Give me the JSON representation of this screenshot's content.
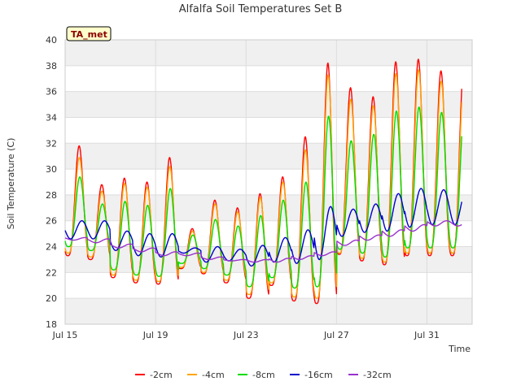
{
  "chart_data": {
    "type": "line",
    "title": "Alfalfa Soil Temperatures Set B",
    "xlabel": "Time",
    "ylabel": "Soil Temperature (C)",
    "badge": "TA_met",
    "ylim": [
      18,
      40
    ],
    "yticks": [
      18,
      20,
      22,
      24,
      26,
      28,
      30,
      32,
      34,
      36,
      38,
      40
    ],
    "xlim": [
      "2017-07-15",
      "2017-08-02"
    ],
    "xticks": [
      {
        "date": "2017-07-15",
        "label": "Jul 15"
      },
      {
        "date": "2017-07-19",
        "label": "Jul 19"
      },
      {
        "date": "2017-07-23",
        "label": "Jul 23"
      },
      {
        "date": "2017-07-27",
        "label": "Jul 27"
      },
      {
        "date": "2017-07-31",
        "label": "Jul 31"
      }
    ],
    "grid": true,
    "legend_position": "bottom",
    "daily_extremes_note": "values are approximate daily max/min read from the plot",
    "series": [
      {
        "name": "-2cm",
        "color": "#ff0000",
        "min": [
          23.3,
          23.0,
          21.6,
          21.2,
          21.1,
          22.3,
          21.9,
          21.2,
          20.0,
          21.0,
          19.8,
          19.6,
          23.4,
          22.9,
          22.6,
          23.3,
          23.3
        ],
        "max": [
          31.8,
          28.8,
          29.3,
          29.0,
          30.9,
          25.4,
          27.6,
          27.0,
          28.1,
          29.4,
          32.5,
          38.2,
          36.3,
          35.6,
          38.3,
          38.5,
          37.6
        ]
      },
      {
        "name": "-4cm",
        "color": "#ffa500",
        "min": [
          23.5,
          23.2,
          21.8,
          21.4,
          21.3,
          22.4,
          22.0,
          21.4,
          20.3,
          21.2,
          20.1,
          20.0,
          23.5,
          23.1,
          22.8,
          23.5,
          23.5
        ],
        "max": [
          30.9,
          28.3,
          28.9,
          28.6,
          30.2,
          25.2,
          27.3,
          26.7,
          27.8,
          29.0,
          31.5,
          37.3,
          35.4,
          34.9,
          37.4,
          37.7,
          36.8
        ]
      },
      {
        "name": "-8cm",
        "color": "#00dd00",
        "min": [
          24.0,
          23.7,
          22.2,
          21.8,
          21.7,
          22.7,
          22.3,
          21.8,
          20.9,
          21.6,
          20.8,
          20.9,
          23.8,
          23.5,
          23.2,
          23.9,
          23.9
        ],
        "max": [
          29.4,
          27.3,
          27.5,
          27.2,
          28.5,
          24.9,
          26.1,
          25.6,
          26.4,
          27.6,
          29.0,
          34.1,
          32.2,
          32.7,
          34.5,
          34.8,
          34.4
        ]
      },
      {
        "name": "-16cm",
        "color": "#0000cc",
        "min": [
          24.6,
          24.6,
          23.7,
          23.3,
          23.2,
          23.5,
          22.8,
          22.9,
          22.5,
          22.8,
          22.7,
          23.0,
          24.8,
          25.1,
          25.2,
          25.5,
          25.7
        ],
        "max": [
          26.0,
          26.0,
          25.2,
          25.0,
          25.0,
          23.9,
          24.0,
          23.8,
          24.1,
          24.7,
          25.3,
          27.1,
          26.9,
          27.3,
          28.1,
          28.5,
          28.4
        ]
      },
      {
        "name": "-32cm",
        "color": "#9932cc",
        "min": [
          24.5,
          24.3,
          23.9,
          23.6,
          23.3,
          23.3,
          23.0,
          22.9,
          22.8,
          22.8,
          23.0,
          23.3,
          24.1,
          24.5,
          24.8,
          25.2,
          25.6
        ],
        "max": [
          24.7,
          24.6,
          24.2,
          23.9,
          23.6,
          23.5,
          23.2,
          23.0,
          23.0,
          23.1,
          23.3,
          23.6,
          24.5,
          24.9,
          25.3,
          25.7,
          26.0
        ]
      }
    ]
  }
}
